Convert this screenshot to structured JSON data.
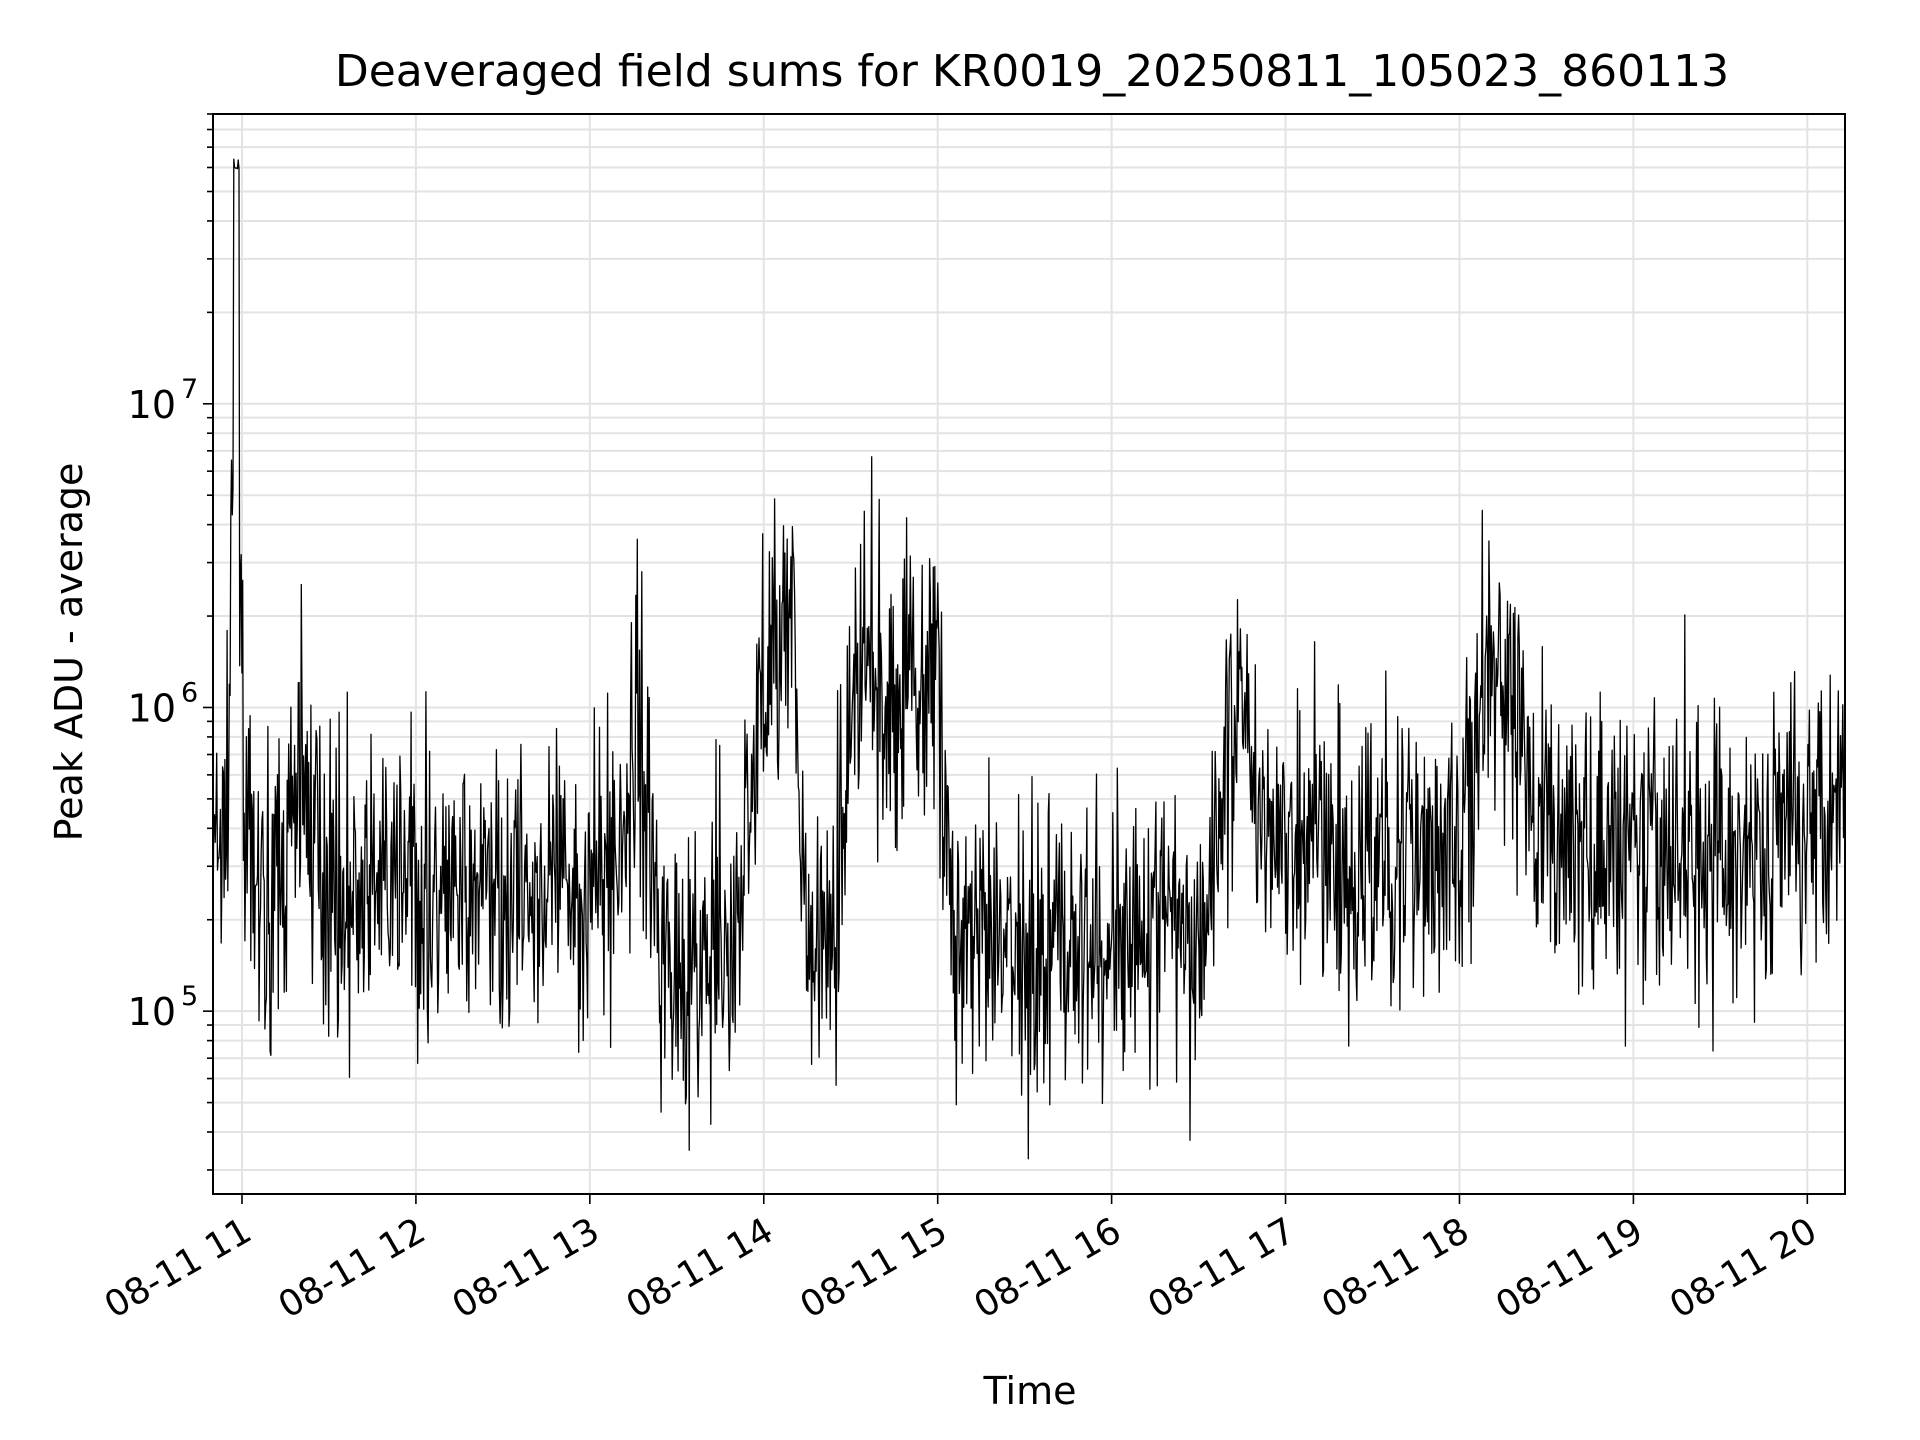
{
  "chart_data": {
    "type": "line",
    "title": "Deaveraged field sums for KR0019_20250811_105023_860113",
    "xlabel": "Time",
    "ylabel": "Peak ADU - average",
    "yscale": "log",
    "grid": true,
    "xlim": [
      "2025-08-11 10:50",
      "2025-08-11 20:13"
    ],
    "ylim": [
      25000,
      90000000
    ],
    "x_ticks": [
      "08-11 11",
      "08-11 12",
      "08-11 13",
      "08-11 14",
      "08-11 15",
      "08-11 16",
      "08-11 17",
      "08-11 18",
      "08-11 19",
      "08-11 20"
    ],
    "y_ticks": [
      {
        "base": "10",
        "exp": "5"
      },
      {
        "base": "10",
        "exp": "6"
      },
      {
        "base": "10",
        "exp": "7"
      }
    ],
    "line_color": "#000000",
    "series": [
      {
        "x": [
          "10:50",
          "10:55",
          "10:58",
          "11:01",
          "11:05",
          "11:10",
          "11:15",
          "11:20",
          "11:24",
          "11:30",
          "11:40",
          "11:50",
          "12:00",
          "12:10",
          "12:20",
          "12:30",
          "12:40",
          "12:50",
          "13:00",
          "13:10",
          "13:16",
          "13:20",
          "13:25",
          "13:30",
          "13:40",
          "13:50",
          "14:00",
          "14:05",
          "14:10",
          "14:15",
          "14:20",
          "14:25",
          "14:30",
          "14:35",
          "14:40",
          "14:45",
          "14:50",
          "14:55",
          "15:00",
          "15:05",
          "15:10",
          "15:20",
          "15:30",
          "15:40",
          "15:50",
          "16:00",
          "16:10",
          "16:20",
          "16:30",
          "16:40",
          "16:45",
          "16:50",
          "16:55",
          "17:00",
          "17:10",
          "17:20",
          "17:30",
          "17:40",
          "17:50",
          "18:00",
          "18:10",
          "18:20",
          "18:25",
          "18:30",
          "18:40",
          "18:50",
          "19:00",
          "19:10",
          "19:20",
          "19:30",
          "19:40",
          "19:50",
          "20:00",
          "20:05",
          "20:10",
          "20:13"
        ],
        "y": [
          300000,
          400000,
          60000000,
          300000,
          250000,
          220000,
          300000,
          550000,
          400000,
          280000,
          220000,
          250000,
          240000,
          230000,
          250000,
          260000,
          240000,
          250000,
          260000,
          280000,
          900000,
          500000,
          160000,
          150000,
          130000,
          160000,
          1300000,
          1800000,
          1500000,
          200000,
          150000,
          160000,
          1000000,
          1400000,
          900000,
          800000,
          1500000,
          1200000,
          1400000,
          180000,
          170000,
          160000,
          165000,
          160000,
          170000,
          165000,
          220000,
          180000,
          170000,
          650000,
          1500000,
          500000,
          400000,
          350000,
          300000,
          280000,
          300000,
          320000,
          330000,
          360000,
          1400000,
          800000,
          500000,
          420000,
          350000,
          330000,
          340000,
          300000,
          350000,
          320000,
          330000,
          400000,
          450000,
          500000,
          600000,
          700000
        ]
      }
    ]
  }
}
